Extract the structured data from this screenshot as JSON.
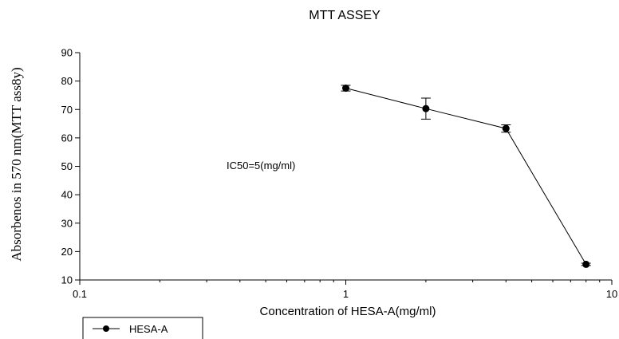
{
  "chart_data": {
    "type": "scatter",
    "title": "MTT ASSEY",
    "xlabel": "Concentration of HESA-A(mg/ml)",
    "ylabel": "Absorbenos in 570 nm(MTT ass8y)",
    "x_scale": "log",
    "xlim": [
      0.1,
      10
    ],
    "ylim": [
      10,
      90
    ],
    "x_ticks": [
      "0.1",
      "1",
      "10"
    ],
    "y_ticks": [
      "10",
      "20",
      "30",
      "40",
      "50",
      "60",
      "70",
      "80",
      "90"
    ],
    "annotation": "IC50=5(mg/ml)",
    "legend_position": "bottom-left",
    "series": [
      {
        "name": "HESA-A",
        "color": "#000000",
        "points": [
          {
            "x": 1,
            "y": 77.5,
            "err": 1
          },
          {
            "x": 2,
            "y": 70.3,
            "err": 3.7
          },
          {
            "x": 4,
            "y": 63.3,
            "err": 1.3
          },
          {
            "x": 8,
            "y": 15.5,
            "err": 0.4
          }
        ]
      }
    ]
  }
}
